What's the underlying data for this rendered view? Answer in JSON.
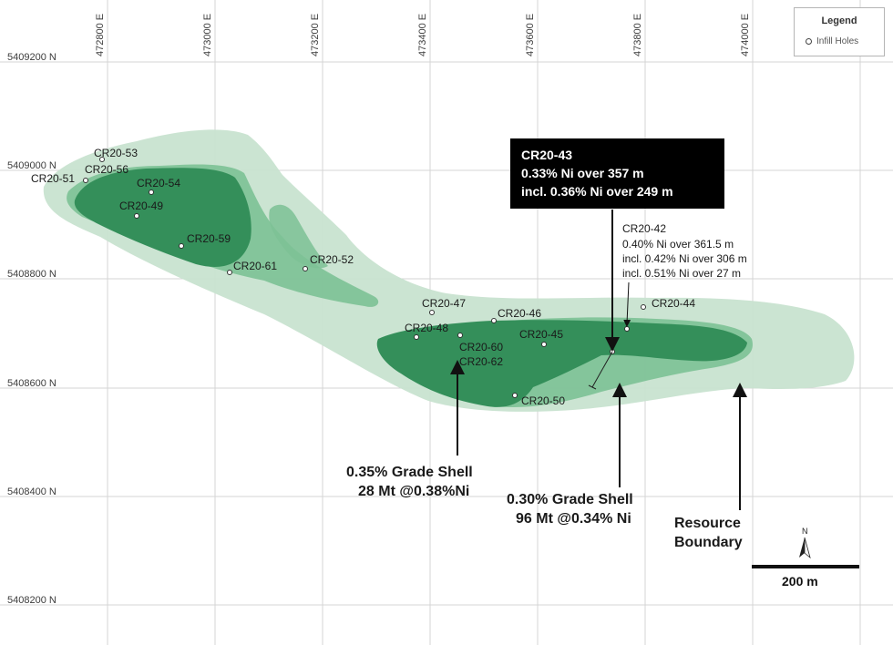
{
  "eastings": [
    "472800 E",
    "473000 E",
    "473200 E",
    "473400 E",
    "473600 E",
    "473800 E",
    "474000 E"
  ],
  "northings": [
    "5409200 N",
    "5409000 N",
    "5408800 N",
    "5408600 N",
    "5408400 N",
    "5408200 N"
  ],
  "legend": {
    "title": "Legend",
    "item": "Infill Holes"
  },
  "holes": {
    "cr20_53": "CR20-53",
    "cr20_56": "CR20-56",
    "cr20_51": "CR20-51",
    "cr20_54": "CR20-54",
    "cr20_49": "CR20-49",
    "cr20_59": "CR20-59",
    "cr20_61": "CR20-61",
    "cr20_52": "CR20-52",
    "cr20_47": "CR20-47",
    "cr20_48": "CR20-48",
    "cr20_46": "CR20-46",
    "cr20_45": "CR20-45",
    "cr20_60": "CR20-60",
    "cr20_62": "CR20-62",
    "cr20_50": "CR20-50",
    "cr20_44": "CR20-44"
  },
  "callout_main": {
    "line1": "CR20-43",
    "line2": "0.33% Ni over 357 m",
    "line3": "incl. 0.36% Ni over 249 m"
  },
  "callout_42": {
    "line1": "CR20-42",
    "line2": "0.40% Ni over 361.5 m",
    "line3": "incl. 0.42% Ni over 306 m",
    "line4": "incl. 0.51% Ni over 27 m"
  },
  "annotations": {
    "shell_035_line1": "0.35% Grade Shell",
    "shell_035_line2": "28 Mt @0.38%Ni",
    "shell_030_line1": "0.30% Grade Shell",
    "shell_030_line2": "96 Mt @0.34% Ni",
    "boundary_line1": "Resource",
    "boundary_line2": "Boundary"
  },
  "north_label": "N",
  "scale_label": "200 m",
  "colors": {
    "resource_boundary": "#c8e3d0",
    "shell_030": "#6fb98a",
    "shell_035": "#2e8b57",
    "grid": "#d4d4d4"
  }
}
